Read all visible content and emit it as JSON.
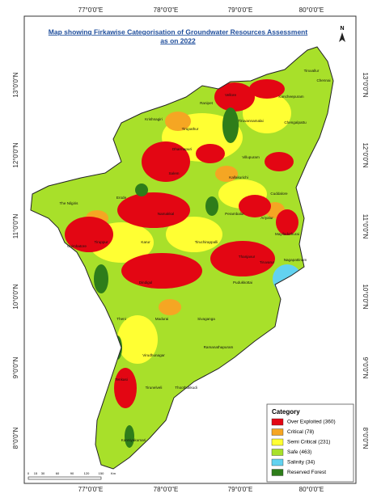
{
  "title": [
    "Map showing Firkawise Categorisation of Groundwater Resources Assessment",
    "as on 2022"
  ],
  "longitudes": [
    "77°0'0\"E",
    "78°0'0\"E",
    "79°0'0\"E",
    "80°0'0\"E"
  ],
  "latitudes": [
    "13°0'0\"N",
    "12°0'0\"N",
    "11°0'0\"N",
    "10°0'0\"N",
    "9°0'0\"N",
    "8°0'0\"N"
  ],
  "north_arrow": "N",
  "districts": [
    "Tiruvallur",
    "Chennai",
    "Vellore",
    "Ranipet",
    "Kancheepuram",
    "Chengalpattu",
    "Krishnagiri",
    "Tirupathur",
    "Tiruvannamalai",
    "Dharmapuri",
    "Villupuram",
    "Salem",
    "Kallakurichi",
    "Cuddalore",
    "The Nilgiris",
    "Erode",
    "Namakkal",
    "Perambalur",
    "Ariyalur",
    "Mayiladuthurai",
    "Coimbatore",
    "Tiruppur",
    "Karur",
    "Tiruchirappalli",
    "Thanjavur",
    "Tiruvarur",
    "Nagapattinam",
    "Dindigul",
    "Pudukkottai",
    "Theni",
    "Madurai",
    "Sivaganga",
    "Virudhunagar",
    "Ramanathapuram",
    "Tenkasi",
    "Thoothukkudi",
    "Tirunelveli",
    "Kanniyakumari"
  ],
  "scale_labels": [
    "0",
    "15",
    "30",
    "60",
    "90",
    "120",
    "150",
    "Km"
  ],
  "legend": {
    "title": "Category",
    "items": [
      {
        "label": "Over Exploited (360)",
        "color": "#e30613"
      },
      {
        "label": "Critical (78)",
        "color": "#f5a623"
      },
      {
        "label": "Semi Critical (231)",
        "color": "#ffff33"
      },
      {
        "label": "Safe (463)",
        "color": "#a8e02a"
      },
      {
        "label": "Salinity (34)",
        "color": "#62d2f0"
      },
      {
        "label": "Reserved Forest",
        "color": "#2e7d1a"
      }
    ]
  }
}
